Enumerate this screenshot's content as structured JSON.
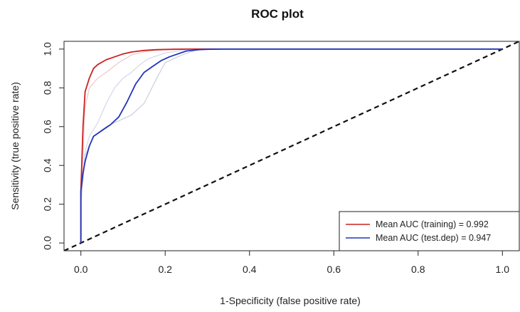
{
  "chart_data": {
    "type": "line",
    "title": "ROC plot",
    "xlabel": "1-Specificity (false positive rate)",
    "ylabel": "Sensitivity (true positive rate)",
    "xlim": [
      -0.04,
      1.04
    ],
    "ylim": [
      -0.04,
      1.04
    ],
    "x_ticks": [
      "0.0",
      "0.2",
      "0.4",
      "0.6",
      "0.8",
      "1.0"
    ],
    "y_ticks": [
      "0.0",
      "0.2",
      "0.4",
      "0.6",
      "0.8",
      "1.0"
    ],
    "grid": false,
    "legend_position": "bottom-right",
    "series": [
      {
        "name": "Mean AUC (training) = 0.992",
        "color": "#cc2222",
        "style": "solid",
        "x": [
          0.0,
          0.0,
          0.005,
          0.01,
          0.02,
          0.03,
          0.04,
          0.06,
          0.08,
          0.1,
          0.12,
          0.15,
          0.18,
          0.22,
          0.26,
          0.3,
          0.4,
          1.0
        ],
        "y": [
          0.0,
          0.27,
          0.6,
          0.78,
          0.85,
          0.9,
          0.92,
          0.945,
          0.96,
          0.975,
          0.985,
          0.993,
          0.997,
          0.999,
          1.0,
          1.0,
          1.0,
          1.0
        ]
      },
      {
        "name": "Mean AUC (test.dep) = 0.947",
        "color": "#2233bb",
        "style": "solid",
        "x": [
          0.0,
          0.0,
          0.005,
          0.01,
          0.015,
          0.02,
          0.03,
          0.05,
          0.07,
          0.09,
          0.11,
          0.13,
          0.15,
          0.17,
          0.19,
          0.21,
          0.23,
          0.25,
          0.28,
          0.3,
          0.34,
          0.4,
          1.0
        ],
        "y": [
          0.0,
          0.27,
          0.36,
          0.42,
          0.46,
          0.5,
          0.55,
          0.58,
          0.61,
          0.65,
          0.73,
          0.82,
          0.88,
          0.91,
          0.94,
          0.96,
          0.975,
          0.99,
          0.997,
          0.999,
          1.0,
          1.0,
          1.0
        ]
      },
      {
        "color": "#c9cfe0",
        "style": "thin",
        "x": [
          0.0,
          0.01,
          0.03,
          0.06,
          0.09,
          0.12,
          0.15,
          0.18,
          0.2,
          0.24,
          0.28,
          1.0
        ],
        "y": [
          0.2,
          0.45,
          0.55,
          0.6,
          0.63,
          0.66,
          0.72,
          0.85,
          0.93,
          0.97,
          1.0,
          1.0
        ]
      },
      {
        "color": "#d3d8ea",
        "style": "thin",
        "x": [
          0.0,
          0.01,
          0.02,
          0.04,
          0.06,
          0.08,
          0.1,
          0.12,
          0.14,
          0.16,
          0.2,
          0.26,
          1.0
        ],
        "y": [
          0.25,
          0.47,
          0.55,
          0.62,
          0.72,
          0.8,
          0.85,
          0.88,
          0.92,
          0.95,
          0.98,
          1.0,
          1.0
        ]
      },
      {
        "color": "#f0c8c8",
        "style": "thin",
        "x": [
          0.0,
          0.01,
          0.02,
          0.04,
          0.06,
          0.09,
          0.12,
          0.16,
          0.22,
          1.0
        ],
        "y": [
          0.2,
          0.7,
          0.8,
          0.85,
          0.88,
          0.93,
          0.97,
          0.99,
          1.0,
          1.0
        ]
      },
      {
        "color": "#111111",
        "style": "dashed",
        "x": [
          -0.04,
          1.04
        ],
        "y": [
          -0.04,
          1.04
        ]
      }
    ]
  }
}
